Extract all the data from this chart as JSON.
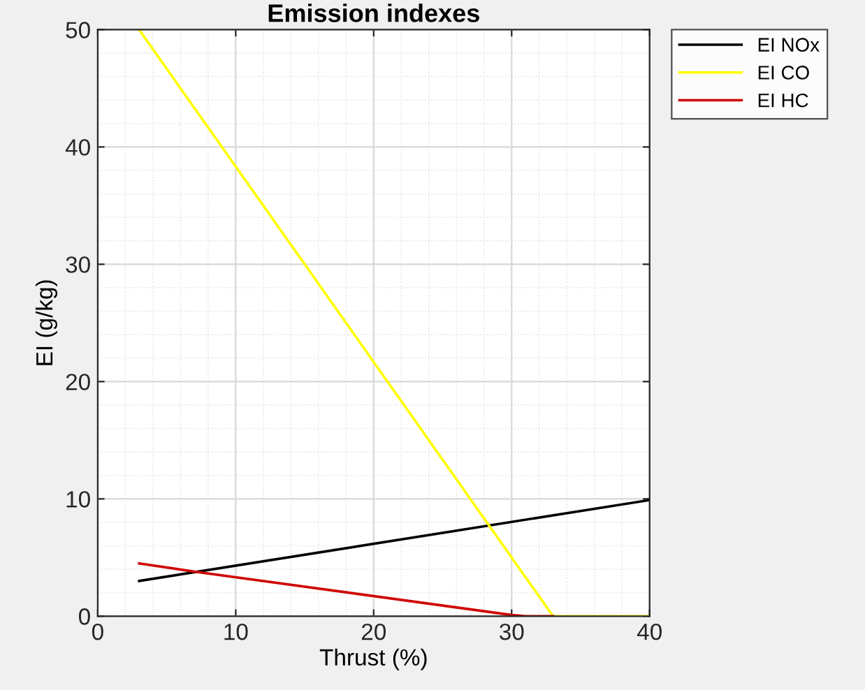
{
  "chart_data": {
    "type": "line",
    "title": "Emission indexes",
    "xlabel": "Thrust (%)",
    "ylabel": "EI (g/kg)",
    "xlim": [
      0,
      40
    ],
    "ylim": [
      0,
      50
    ],
    "xticks": [
      0,
      10,
      20,
      30,
      40
    ],
    "yticks": [
      0,
      10,
      20,
      30,
      40,
      50
    ],
    "grid": true,
    "legend": "top right",
    "marker": "none",
    "line_style": "solid",
    "series": [
      {
        "name": "EI NOx",
        "color": "#000000",
        "x": [
          3,
          40
        ],
        "values": [
          3.0,
          9.9
        ]
      },
      {
        "name": "EI CO",
        "color": "#ffff00",
        "x": [
          3,
          33,
          40
        ],
        "values": [
          50,
          0,
          0
        ]
      },
      {
        "name": "EI HC",
        "color": "#d00000",
        "x": [
          3,
          7,
          30,
          31,
          33
        ],
        "values": [
          4.5,
          3.8,
          0.1,
          0,
          0
        ]
      }
    ]
  }
}
